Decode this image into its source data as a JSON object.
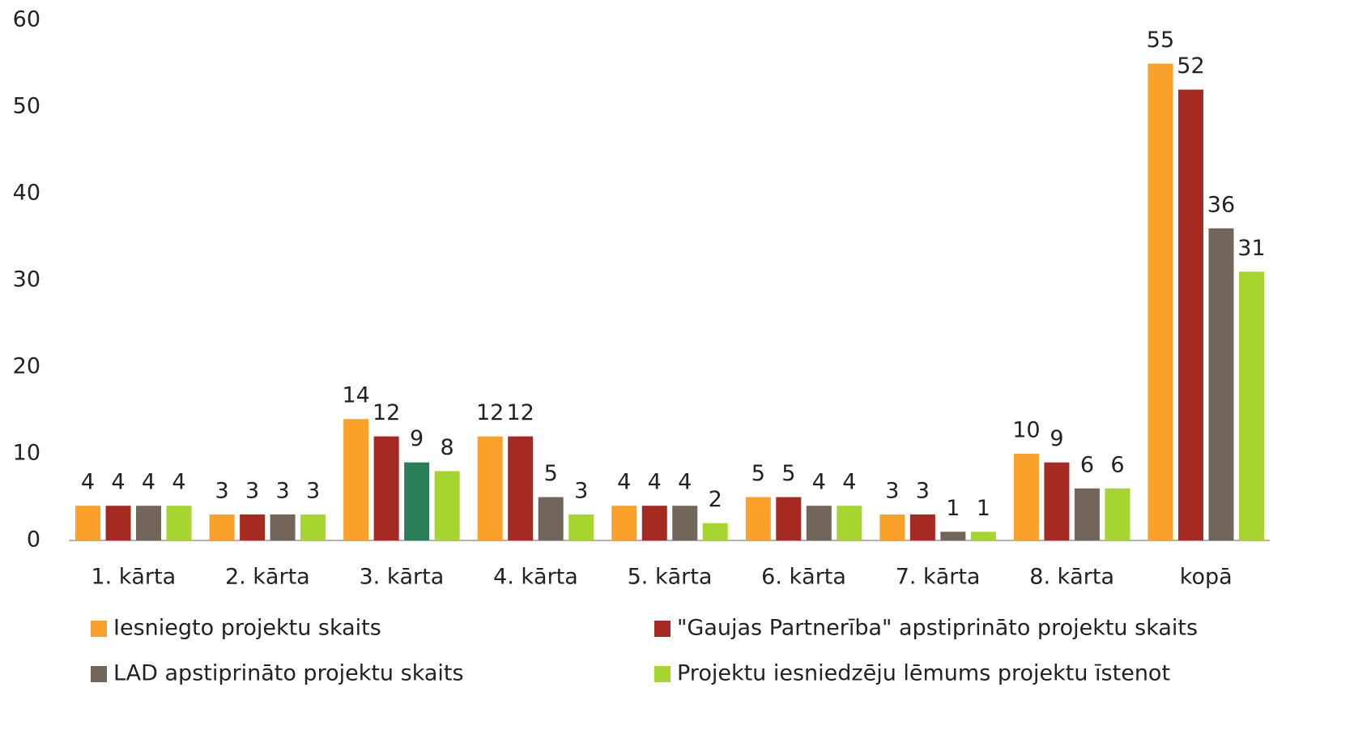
{
  "chart_data": {
    "type": "bar",
    "categories": [
      "1. kārta",
      "2. kārta",
      "3. kārta",
      "4. kārta",
      "5. kārta",
      "6. kārta",
      "7. kārta",
      "8. kārta",
      "kopā"
    ],
    "series": [
      {
        "name": "Iesniegto projektu skaits",
        "color": "#f9a12a",
        "values": [
          4,
          3,
          14,
          12,
          4,
          5,
          3,
          10,
          55
        ]
      },
      {
        "name": "\"Gaujas Partnerība\" apstiprināto projektu skaits",
        "color": "#a52a22",
        "values": [
          4,
          3,
          12,
          12,
          4,
          5,
          3,
          9,
          52
        ]
      },
      {
        "name": "LAD apstiprināto projektu skaits",
        "color": "#716659",
        "values": [
          4,
          3,
          9,
          5,
          4,
          4,
          1,
          6,
          36
        ],
        "colors": [
          "#716659",
          "#716659",
          "#2a7e58",
          "#716659",
          "#716659",
          "#716659",
          "#716659",
          "#716659",
          "#716659"
        ]
      },
      {
        "name": "Projektu iesniedzēju lēmums projektu īstenot",
        "color": "#a7d52f",
        "values": [
          4,
          3,
          8,
          3,
          2,
          4,
          1,
          6,
          31
        ]
      }
    ],
    "ylim": [
      0,
      60
    ],
    "yticks": [
      0,
      10,
      20,
      30,
      40,
      50,
      60
    ],
    "grid": false,
    "legend": "bottom"
  }
}
